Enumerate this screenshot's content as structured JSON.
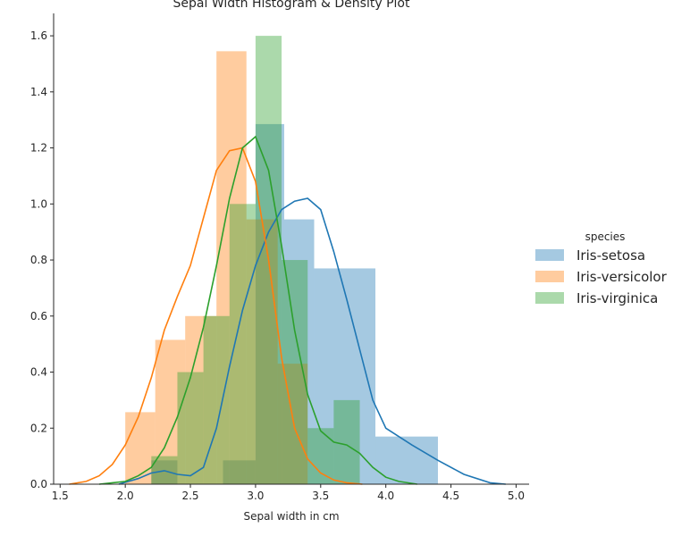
{
  "chart_data": {
    "type": "bar",
    "title": "Sepal Width Histogram & Density Plot",
    "xlabel": "Sepal width in cm",
    "ylabel": "",
    "xlim": [
      1.45,
      5.1
    ],
    "ylim": [
      0,
      1.68
    ],
    "xticks": [
      "1.5",
      "2.0",
      "2.5",
      "3.0",
      "3.5",
      "4.0",
      "4.5",
      "5.0"
    ],
    "xtick_values": [
      1.5,
      2.0,
      2.5,
      3.0,
      3.5,
      4.0,
      4.5,
      5.0
    ],
    "yticks": [
      "0.0",
      "0.2",
      "0.4",
      "0.6",
      "0.8",
      "1.0",
      "1.2",
      "1.4",
      "1.6"
    ],
    "ytick_values": [
      0.0,
      0.2,
      0.4,
      0.6,
      0.8,
      1.0,
      1.2,
      1.4,
      1.6
    ],
    "grid": false,
    "legend": {
      "title": "species",
      "placement": "center-right"
    },
    "series": [
      {
        "name": "Iris-setosa",
        "color": "#1f77b4",
        "histogram": [
          {
            "x0": 2.2,
            "x1": 2.4,
            "y": 0.085
          },
          {
            "x0": 2.4,
            "x1": 2.75,
            "y": 0.0
          },
          {
            "x0": 2.75,
            "x1": 3.0,
            "y": 0.085
          },
          {
            "x0": 3.0,
            "x1": 3.22,
            "y": 1.285
          },
          {
            "x0": 3.22,
            "x1": 3.45,
            "y": 0.945
          },
          {
            "x0": 3.45,
            "x1": 3.92,
            "y": 0.77
          },
          {
            "x0": 3.92,
            "x1": 4.4,
            "y": 0.17
          }
        ],
        "density": {
          "x": [
            1.95,
            2.1,
            2.2,
            2.3,
            2.4,
            2.5,
            2.6,
            2.7,
            2.8,
            2.9,
            3.0,
            3.1,
            3.2,
            3.3,
            3.4,
            3.5,
            3.6,
            3.7,
            3.8,
            3.9,
            4.0,
            4.2,
            4.4,
            4.6,
            4.8,
            4.92
          ],
          "y": [
            0.0,
            0.02,
            0.04,
            0.048,
            0.035,
            0.03,
            0.06,
            0.2,
            0.42,
            0.62,
            0.78,
            0.9,
            0.98,
            1.01,
            1.02,
            0.98,
            0.83,
            0.66,
            0.48,
            0.3,
            0.2,
            0.14,
            0.085,
            0.035,
            0.005,
            0.0
          ]
        }
      },
      {
        "name": "Iris-versicolor",
        "color": "#ff7f0e",
        "histogram": [
          {
            "x0": 2.0,
            "x1": 2.23,
            "y": 0.257
          },
          {
            "x0": 2.23,
            "x1": 2.46,
            "y": 0.515
          },
          {
            "x0": 2.46,
            "x1": 2.7,
            "y": 0.6
          },
          {
            "x0": 2.7,
            "x1": 2.93,
            "y": 1.545
          },
          {
            "x0": 2.93,
            "x1": 3.17,
            "y": 0.945
          },
          {
            "x0": 3.17,
            "x1": 3.4,
            "y": 0.43
          }
        ],
        "density": {
          "x": [
            1.57,
            1.7,
            1.8,
            1.9,
            2.0,
            2.1,
            2.2,
            2.3,
            2.4,
            2.5,
            2.6,
            2.7,
            2.8,
            2.9,
            3.0,
            3.1,
            3.2,
            3.3,
            3.4,
            3.5,
            3.6,
            3.7,
            3.82
          ],
          "y": [
            0.0,
            0.01,
            0.03,
            0.07,
            0.14,
            0.24,
            0.38,
            0.55,
            0.67,
            0.78,
            0.95,
            1.12,
            1.19,
            1.2,
            1.08,
            0.8,
            0.45,
            0.2,
            0.09,
            0.04,
            0.015,
            0.005,
            0.0
          ]
        }
      },
      {
        "name": "Iris-virginica",
        "color": "#2ca02c",
        "histogram": [
          {
            "x0": 2.2,
            "x1": 2.4,
            "y": 0.1
          },
          {
            "x0": 2.4,
            "x1": 2.6,
            "y": 0.4
          },
          {
            "x0": 2.6,
            "x1": 2.8,
            "y": 0.6
          },
          {
            "x0": 2.8,
            "x1": 3.0,
            "y": 1.0
          },
          {
            "x0": 3.0,
            "x1": 3.2,
            "y": 1.6
          },
          {
            "x0": 3.2,
            "x1": 3.4,
            "y": 0.8
          },
          {
            "x0": 3.4,
            "x1": 3.6,
            "y": 0.2
          },
          {
            "x0": 3.6,
            "x1": 3.8,
            "y": 0.3
          }
        ],
        "density": {
          "x": [
            1.8,
            2.0,
            2.1,
            2.2,
            2.3,
            2.4,
            2.5,
            2.6,
            2.7,
            2.8,
            2.9,
            3.0,
            3.1,
            3.2,
            3.3,
            3.4,
            3.5,
            3.6,
            3.7,
            3.8,
            3.9,
            4.0,
            4.1,
            4.24
          ],
          "y": [
            0.0,
            0.01,
            0.03,
            0.06,
            0.13,
            0.24,
            0.38,
            0.56,
            0.78,
            1.02,
            1.2,
            1.24,
            1.12,
            0.85,
            0.55,
            0.32,
            0.19,
            0.15,
            0.14,
            0.11,
            0.06,
            0.025,
            0.01,
            0.0
          ]
        }
      }
    ]
  }
}
